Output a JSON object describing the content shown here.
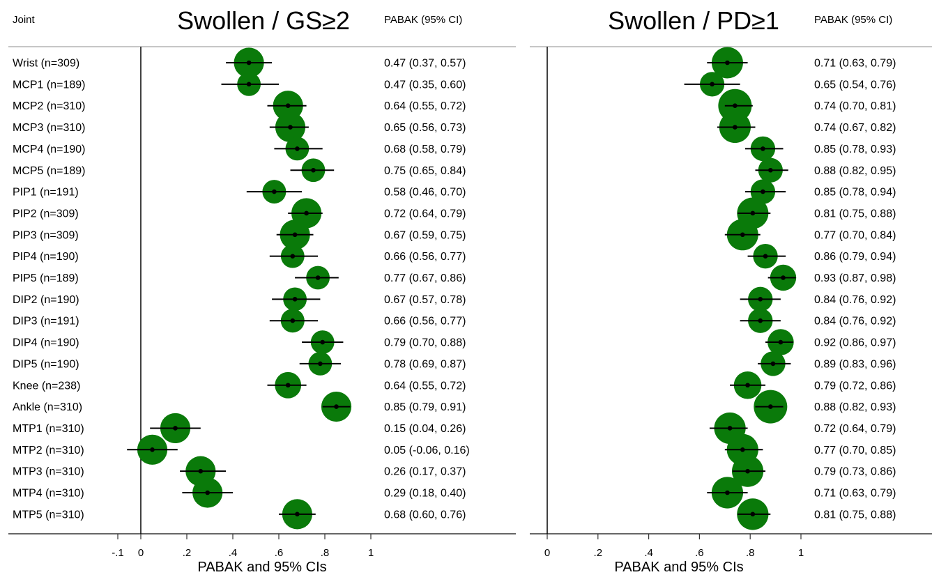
{
  "chart_data": [
    {
      "type": "forest",
      "title": "Swollen / GS≥2",
      "column_header_left": "Joint",
      "column_header_right": "PABAK (95% CI)",
      "xlabel": "PABAK and 95% CIs",
      "xlim": [
        -0.1,
        1.0
      ],
      "xticks": [
        -0.1,
        0,
        0.2,
        0.4,
        0.6,
        0.8,
        1.0
      ],
      "xtick_labels": [
        "-.1",
        "0",
        ".2",
        ".4",
        ".6",
        ".8",
        "1"
      ],
      "marker_color": "#0a7a0a",
      "rows": [
        {
          "label": "Wrist (n=309)",
          "estimate": 0.47,
          "lower": 0.37,
          "upper": 0.57,
          "ci_text": "0.47 (0.37, 0.57)",
          "weight": 309
        },
        {
          "label": "MCP1 (n=189)",
          "estimate": 0.47,
          "lower": 0.35,
          "upper": 0.6,
          "ci_text": "0.47 (0.35, 0.60)",
          "weight": 189
        },
        {
          "label": "MCP2 (n=310)",
          "estimate": 0.64,
          "lower": 0.55,
          "upper": 0.72,
          "ci_text": "0.64 (0.55, 0.72)",
          "weight": 310
        },
        {
          "label": "MCP3 (n=310)",
          "estimate": 0.65,
          "lower": 0.56,
          "upper": 0.73,
          "ci_text": "0.65 (0.56, 0.73)",
          "weight": 310
        },
        {
          "label": "MCP4 (n=190)",
          "estimate": 0.68,
          "lower": 0.58,
          "upper": 0.79,
          "ci_text": "0.68 (0.58, 0.79)",
          "weight": 190
        },
        {
          "label": "MCP5 (n=189)",
          "estimate": 0.75,
          "lower": 0.65,
          "upper": 0.84,
          "ci_text": "0.75 (0.65, 0.84)",
          "weight": 189
        },
        {
          "label": "PIP1 (n=191)",
          "estimate": 0.58,
          "lower": 0.46,
          "upper": 0.7,
          "ci_text": "0.58 (0.46, 0.70)",
          "weight": 191
        },
        {
          "label": "PIP2 (n=309)",
          "estimate": 0.72,
          "lower": 0.64,
          "upper": 0.79,
          "ci_text": "0.72 (0.64, 0.79)",
          "weight": 309
        },
        {
          "label": "PIP3 (n=309)",
          "estimate": 0.67,
          "lower": 0.59,
          "upper": 0.75,
          "ci_text": "0.67 (0.59, 0.75)",
          "weight": 309
        },
        {
          "label": "PIP4 (n=190)",
          "estimate": 0.66,
          "lower": 0.56,
          "upper": 0.77,
          "ci_text": "0.66 (0.56, 0.77)",
          "weight": 190
        },
        {
          "label": "PIP5 (n=189)",
          "estimate": 0.77,
          "lower": 0.67,
          "upper": 0.86,
          "ci_text": "0.77 (0.67, 0.86)",
          "weight": 189
        },
        {
          "label": "DIP2 (n=190)",
          "estimate": 0.67,
          "lower": 0.57,
          "upper": 0.78,
          "ci_text": "0.67 (0.57, 0.78)",
          "weight": 190
        },
        {
          "label": "DIP3 (n=191)",
          "estimate": 0.66,
          "lower": 0.56,
          "upper": 0.77,
          "ci_text": "0.66 (0.56, 0.77)",
          "weight": 191
        },
        {
          "label": "DIP4 (n=190)",
          "estimate": 0.79,
          "lower": 0.7,
          "upper": 0.88,
          "ci_text": "0.79 (0.70, 0.88)",
          "weight": 190
        },
        {
          "label": "DIP5 (n=190)",
          "estimate": 0.78,
          "lower": 0.69,
          "upper": 0.87,
          "ci_text": "0.78 (0.69, 0.87)",
          "weight": 190
        },
        {
          "label": "Knee (n=238)",
          "estimate": 0.64,
          "lower": 0.55,
          "upper": 0.72,
          "ci_text": "0.64 (0.55, 0.72)",
          "weight": 238
        },
        {
          "label": "Ankle (n=310)",
          "estimate": 0.85,
          "lower": 0.79,
          "upper": 0.91,
          "ci_text": "0.85 (0.79, 0.91)",
          "weight": 310
        },
        {
          "label": "MTP1 (n=310)",
          "estimate": 0.15,
          "lower": 0.04,
          "upper": 0.26,
          "ci_text": "0.15 (0.04, 0.26)",
          "weight": 310
        },
        {
          "label": "MTP2 (n=310)",
          "estimate": 0.05,
          "lower": -0.06,
          "upper": 0.16,
          "ci_text": "0.05 (-0.06, 0.16)",
          "weight": 310
        },
        {
          "label": "MTP3 (n=310)",
          "estimate": 0.26,
          "lower": 0.17,
          "upper": 0.37,
          "ci_text": "0.26 (0.17, 0.37)",
          "weight": 310
        },
        {
          "label": "MTP4 (n=310)",
          "estimate": 0.29,
          "lower": 0.18,
          "upper": 0.4,
          "ci_text": "0.29 (0.18, 0.40)",
          "weight": 310
        },
        {
          "label": "MTP5 (n=310)",
          "estimate": 0.68,
          "lower": 0.6,
          "upper": 0.76,
          "ci_text": "0.68 (0.60, 0.76)",
          "weight": 310
        }
      ]
    },
    {
      "type": "forest",
      "title": "Swollen / PD≥1",
      "column_header_right": "PABAK (95% CI)",
      "xlabel": "PABAK and 95% CIs",
      "xlim": [
        0,
        1.0
      ],
      "xticks": [
        0,
        0.2,
        0.4,
        0.6,
        0.8,
        1.0
      ],
      "xtick_labels": [
        "0",
        ".2",
        ".4",
        ".6",
        ".8",
        "1"
      ],
      "marker_color": "#0a7a0a",
      "rows": [
        {
          "estimate": 0.71,
          "lower": 0.63,
          "upper": 0.79,
          "ci_text": "0.71 (0.63, 0.79)",
          "weight": 309
        },
        {
          "estimate": 0.65,
          "lower": 0.54,
          "upper": 0.76,
          "ci_text": "0.65 (0.54, 0.76)",
          "weight": 189
        },
        {
          "estimate": 0.74,
          "lower": 0.7,
          "upper": 0.81,
          "ci_text": "0.74 (0.70, 0.81)",
          "weight": 310
        },
        {
          "estimate": 0.74,
          "lower": 0.67,
          "upper": 0.82,
          "ci_text": "0.74 (0.67, 0.82)",
          "weight": 310
        },
        {
          "estimate": 0.85,
          "lower": 0.78,
          "upper": 0.93,
          "ci_text": "0.85 (0.78, 0.93)",
          "weight": 190
        },
        {
          "estimate": 0.88,
          "lower": 0.82,
          "upper": 0.95,
          "ci_text": "0.88 (0.82, 0.95)",
          "weight": 189
        },
        {
          "estimate": 0.85,
          "lower": 0.78,
          "upper": 0.94,
          "ci_text": "0.85 (0.78, 0.94)",
          "weight": 191
        },
        {
          "estimate": 0.81,
          "lower": 0.75,
          "upper": 0.88,
          "ci_text": "0.81 (0.75, 0.88)",
          "weight": 309
        },
        {
          "estimate": 0.77,
          "lower": 0.7,
          "upper": 0.84,
          "ci_text": "0.77 (0.70, 0.84)",
          "weight": 309
        },
        {
          "estimate": 0.86,
          "lower": 0.79,
          "upper": 0.94,
          "ci_text": "0.86 (0.79, 0.94)",
          "weight": 190
        },
        {
          "estimate": 0.93,
          "lower": 0.87,
          "upper": 0.98,
          "ci_text": "0.93 (0.87, 0.98)",
          "weight": 189
        },
        {
          "estimate": 0.84,
          "lower": 0.76,
          "upper": 0.92,
          "ci_text": "0.84 (0.76, 0.92)",
          "weight": 190
        },
        {
          "estimate": 0.84,
          "lower": 0.76,
          "upper": 0.92,
          "ci_text": "0.84 (0.76, 0.92)",
          "weight": 191
        },
        {
          "estimate": 0.92,
          "lower": 0.86,
          "upper": 0.97,
          "ci_text": "0.92 (0.86, 0.97)",
          "weight": 190
        },
        {
          "estimate": 0.89,
          "lower": 0.83,
          "upper": 0.96,
          "ci_text": "0.89 (0.83, 0.96)",
          "weight": 190
        },
        {
          "estimate": 0.79,
          "lower": 0.72,
          "upper": 0.86,
          "ci_text": "0.79 (0.72, 0.86)",
          "weight": 238
        },
        {
          "estimate": 0.88,
          "lower": 0.82,
          "upper": 0.93,
          "ci_text": "0.88 (0.82, 0.93)",
          "weight": 310
        },
        {
          "estimate": 0.72,
          "lower": 0.64,
          "upper": 0.79,
          "ci_text": "0.72 (0.64, 0.79)",
          "weight": 310
        },
        {
          "estimate": 0.77,
          "lower": 0.7,
          "upper": 0.85,
          "ci_text": "0.77 (0.70, 0.85)",
          "weight": 310
        },
        {
          "estimate": 0.79,
          "lower": 0.73,
          "upper": 0.86,
          "ci_text": "0.79 (0.73, 0.86)",
          "weight": 310
        },
        {
          "estimate": 0.71,
          "lower": 0.63,
          "upper": 0.79,
          "ci_text": "0.71 (0.63, 0.79)",
          "weight": 310
        },
        {
          "estimate": 0.81,
          "lower": 0.75,
          "upper": 0.88,
          "ci_text": "0.81 (0.75, 0.88)",
          "weight": 310
        }
      ]
    }
  ]
}
